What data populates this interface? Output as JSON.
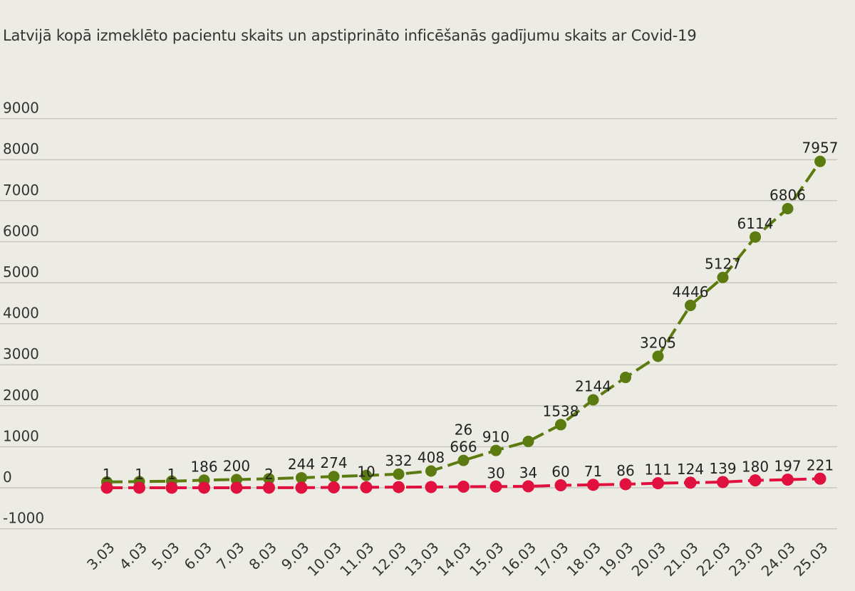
{
  "chart_data": {
    "type": "line",
    "title": "Latvijā kopā izmeklēto pacientu skaits un apstiprināto inficēšanās gadījumu skaits ar Covid-19",
    "categories": [
      "3.03",
      "4.03",
      "5.03",
      "6.03",
      "7.03",
      "8.03",
      "9.03",
      "10.03",
      "11.03",
      "12.03",
      "13.03",
      "14.03",
      "15.03",
      "16.03",
      "17.03",
      "18.03",
      "19.03",
      "20.03",
      "21.03",
      "22.03",
      "23.03",
      "24.03",
      "25.03"
    ],
    "ylim": [
      -1000,
      9000
    ],
    "yticks": [
      -1000,
      0,
      1000,
      2000,
      3000,
      4000,
      5000,
      6000,
      7000,
      8000,
      9000
    ],
    "grid": true,
    "legend": "none",
    "series": [
      {
        "color": "#5b7a10",
        "values": [
          140,
          150,
          160,
          186,
          200,
          220,
          244,
          274,
          300,
          332,
          408,
          666,
          910,
          1130,
          1538,
          2144,
          2690,
          3205,
          4446,
          5127,
          6114,
          6806,
          7957
        ],
        "labels": [
          null,
          null,
          null,
          "186",
          "200",
          null,
          "244",
          "274",
          null,
          "332",
          "408",
          "666",
          "910",
          null,
          "1538",
          "2144",
          null,
          "3205",
          "4446",
          "5127",
          "6114",
          "6806",
          "7957"
        ]
      },
      {
        "color": "#e0103f",
        "values": [
          1,
          1,
          1,
          1,
          1,
          2,
          2,
          8,
          10,
          16,
          17,
          26,
          30,
          34,
          60,
          71,
          86,
          111,
          124,
          139,
          180,
          197,
          221
        ],
        "labels": [
          "1",
          "1",
          "1",
          null,
          null,
          "2",
          null,
          null,
          "10",
          null,
          null,
          "26",
          "30",
          "34",
          "60",
          "71",
          "86",
          "111",
          "124",
          "139",
          "180",
          "197",
          "221"
        ]
      }
    ]
  }
}
